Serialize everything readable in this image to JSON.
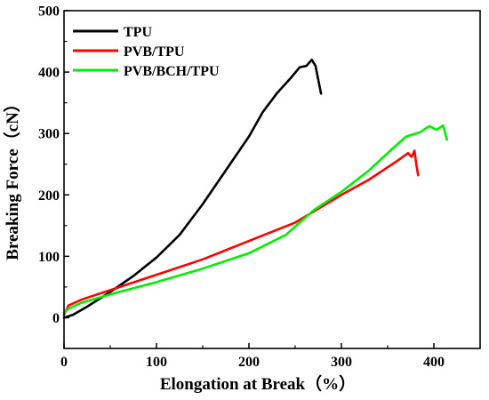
{
  "chart_data": {
    "type": "line",
    "xlabel": "Elongation at Break（%）",
    "ylabel": "Breaking Force（cN）",
    "xlim": [
      0,
      450
    ],
    "ylim": [
      -50,
      500
    ],
    "x_ticks": [
      0,
      100,
      200,
      300,
      400
    ],
    "y_ticks": [
      0,
      100,
      200,
      300,
      400,
      500
    ],
    "grid": false,
    "legend_position": "top-left",
    "series": [
      {
        "name": "TPU",
        "color": "#000000",
        "points": [
          [
            0,
            0
          ],
          [
            10,
            5
          ],
          [
            25,
            18
          ],
          [
            50,
            42
          ],
          [
            75,
            68
          ],
          [
            100,
            98
          ],
          [
            125,
            135
          ],
          [
            150,
            185
          ],
          [
            175,
            240
          ],
          [
            200,
            295
          ],
          [
            215,
            335
          ],
          [
            230,
            365
          ],
          [
            245,
            390
          ],
          [
            255,
            408
          ],
          [
            262,
            410
          ],
          [
            268,
            420
          ],
          [
            272,
            410
          ],
          [
            276,
            380
          ],
          [
            278,
            365
          ]
        ]
      },
      {
        "name": "PVB/TPU",
        "color": "#ff0000",
        "points": [
          [
            0,
            5
          ],
          [
            5,
            20
          ],
          [
            20,
            30
          ],
          [
            50,
            45
          ],
          [
            100,
            70
          ],
          [
            150,
            95
          ],
          [
            200,
            125
          ],
          [
            250,
            155
          ],
          [
            300,
            200
          ],
          [
            330,
            225
          ],
          [
            360,
            255
          ],
          [
            372,
            268
          ],
          [
            376,
            262
          ],
          [
            379,
            272
          ],
          [
            381,
            250
          ],
          [
            383,
            232
          ]
        ]
      },
      {
        "name": "PVB/BCH/TPU",
        "color": "#00ee00",
        "points": [
          [
            0,
            8
          ],
          [
            5,
            15
          ],
          [
            20,
            25
          ],
          [
            50,
            38
          ],
          [
            100,
            58
          ],
          [
            150,
            80
          ],
          [
            200,
            105
          ],
          [
            240,
            135
          ],
          [
            270,
            175
          ],
          [
            300,
            205
          ],
          [
            330,
            240
          ],
          [
            355,
            275
          ],
          [
            370,
            295
          ],
          [
            385,
            302
          ],
          [
            395,
            312
          ],
          [
            403,
            306
          ],
          [
            410,
            313
          ],
          [
            414,
            290
          ]
        ]
      }
    ]
  }
}
